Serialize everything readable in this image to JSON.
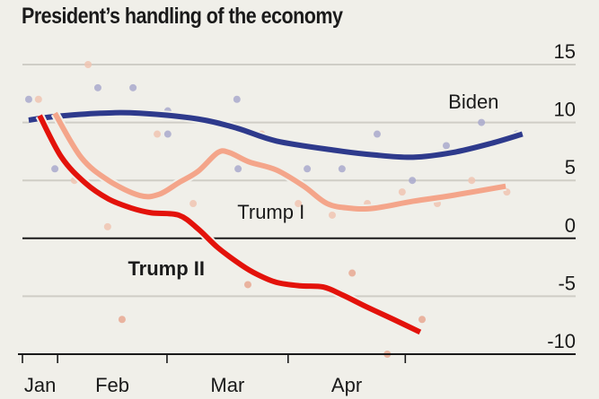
{
  "chart_data": {
    "type": "line",
    "title": "President’s handling of the economy",
    "xlabel": "",
    "ylabel": "",
    "x_units": "days since inauguration",
    "xlim": [
      -2,
      142
    ],
    "ylim": [
      -10,
      15
    ],
    "y_ticks": [
      15,
      10,
      5,
      0,
      -5,
      -10
    ],
    "x_tick_marks": [
      0,
      9,
      37,
      68,
      98,
      142
    ],
    "x_tick_labels": [
      {
        "label": "Jan",
        "x": 4.5
      },
      {
        "label": "Feb",
        "x": 23
      },
      {
        "label": "Mar",
        "x": 52.5
      },
      {
        "label": "Apr",
        "x": 83
      }
    ],
    "grid": true,
    "zero_line": true,
    "series": [
      {
        "name": "Biden",
        "label": "Biden",
        "color": "#2e3a8c",
        "dot_color": "#a9a9cc",
        "bold_label": false,
        "label_pos": {
          "x": 109,
          "y": 11.2
        },
        "line": [
          [
            1.6,
            10.2
          ],
          [
            8,
            10.5
          ],
          [
            20,
            10.8
          ],
          [
            30,
            10.8
          ],
          [
            45,
            10.3
          ],
          [
            55,
            9.5
          ],
          [
            65,
            8.4
          ],
          [
            80,
            7.6
          ],
          [
            90,
            7.2
          ],
          [
            100,
            7.0
          ],
          [
            110,
            7.4
          ],
          [
            120,
            8.2
          ],
          [
            128,
            9.0
          ],
          [
            126.5,
            9.5
          ],
          [
            126.5,
            9.5
          ]
        ],
        "points": [
          [
            1.6,
            12.0
          ],
          [
            19.3,
            13.0
          ],
          [
            28.3,
            13.0
          ],
          [
            37.2,
            11.0
          ],
          [
            54.9,
            12.0
          ],
          [
            8.3,
            6.0
          ],
          [
            37.2,
            9.0
          ],
          [
            55.2,
            6.0
          ],
          [
            72.9,
            6.0
          ],
          [
            81.8,
            6.0
          ],
          [
            90.8,
            9.0
          ],
          [
            99.8,
            5.0
          ],
          [
            108.5,
            8.0
          ],
          [
            117.5,
            10.0
          ],
          [
            126.5,
            9.0
          ]
        ]
      },
      {
        "name": "Trump I",
        "label": "Trump I",
        "color": "#f4a58a",
        "dot_color": "#f0c4b2",
        "bold_label": false,
        "label_pos": {
          "x": 55,
          "y": 1.7
        },
        "line": [
          [
            8.3,
            10.8
          ],
          [
            15,
            7.0
          ],
          [
            22,
            5.0
          ],
          [
            30,
            3.7
          ],
          [
            35,
            3.8
          ],
          [
            40,
            4.8
          ],
          [
            45,
            5.8
          ],
          [
            50,
            7.4
          ],
          [
            53,
            7.4
          ],
          [
            58,
            6.6
          ],
          [
            65,
            5.9
          ],
          [
            72,
            4.5
          ],
          [
            78,
            3.0
          ],
          [
            84,
            2.6
          ],
          [
            90,
            2.6
          ],
          [
            100,
            3.2
          ],
          [
            110,
            3.7
          ],
          [
            123.7,
            4.5
          ]
        ],
        "points": [
          [
            4.1,
            12.0
          ],
          [
            16.8,
            15.0
          ],
          [
            13.3,
            5.0
          ],
          [
            21.8,
            1.0
          ],
          [
            34.5,
            9.0
          ],
          [
            43.7,
            3.0
          ],
          [
            61.2,
            9.0
          ],
          [
            70.6,
            3.0
          ],
          [
            79.3,
            2.0
          ],
          [
            88.3,
            3.0
          ],
          [
            97.2,
            4.0
          ],
          [
            106.2,
            3.0
          ],
          [
            115.0,
            5.0
          ],
          [
            124.0,
            4.0
          ]
        ]
      },
      {
        "name": "Trump II",
        "label": "Trump II",
        "color": "#e3120b",
        "dot_color": "#e8a892",
        "bold_label": true,
        "label_pos": {
          "x": 27,
          "y": -3.2
        },
        "line": [
          [
            4.4,
            10.6
          ],
          [
            10,
            7.0
          ],
          [
            16,
            4.8
          ],
          [
            22,
            3.4
          ],
          [
            28,
            2.6
          ],
          [
            33,
            2.2
          ],
          [
            40,
            2.0
          ],
          [
            45,
            0.8
          ],
          [
            50,
            -0.8
          ],
          [
            56,
            -2.3
          ],
          [
            60,
            -3.1
          ],
          [
            65,
            -3.8
          ],
          [
            71,
            -4.1
          ],
          [
            77,
            -4.2
          ],
          [
            82,
            -4.9
          ],
          [
            88,
            -5.9
          ],
          [
            95,
            -7.0
          ],
          [
            101.8,
            -8.1
          ]
        ],
        "points": [
          [
            25.5,
            -7.0
          ],
          [
            57.7,
            -4.0
          ],
          [
            84.4,
            -3.0
          ],
          [
            93.4,
            -10.0
          ],
          [
            102.3,
            -7.0
          ]
        ]
      }
    ]
  }
}
